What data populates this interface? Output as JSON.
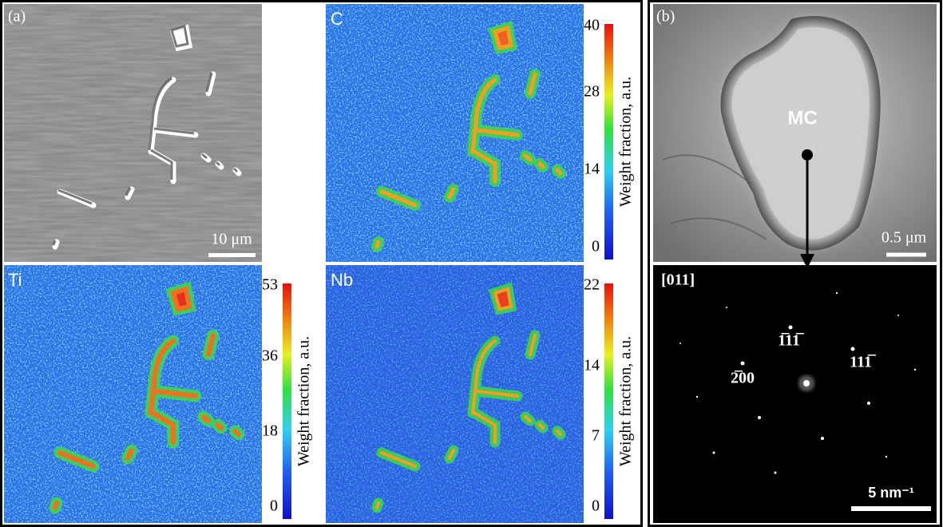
{
  "panel_a": {
    "label": "(a)",
    "sem": {
      "scale_bar": "10 μm"
    },
    "maps": [
      {
        "element": "C",
        "colorbar": {
          "label": "Weight fraction, a.u.",
          "ticks": [
            0,
            14,
            28,
            40
          ]
        }
      },
      {
        "element": "Ti",
        "colorbar": {
          "label": "Weight fraction, a.u.",
          "ticks": [
            0,
            18,
            36,
            53
          ]
        }
      },
      {
        "element": "Nb",
        "colorbar": {
          "label": "Weight fraction, a.u.",
          "ticks": [
            0,
            7,
            14,
            22
          ]
        }
      }
    ]
  },
  "panel_b": {
    "label": "(b)",
    "tem": {
      "phase": "MC",
      "scale_bar": "0.5 μm"
    },
    "diffraction": {
      "zone_axis": "[011]",
      "spots": [
        "1̅11̅",
        "111̅",
        "2̅00"
      ],
      "scale_bar": "5 nm⁻¹"
    }
  }
}
